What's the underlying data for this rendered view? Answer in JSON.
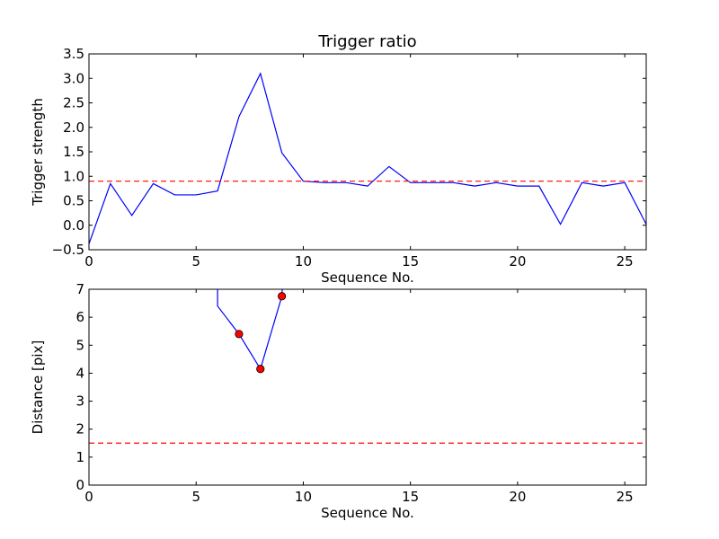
{
  "colors": {
    "line": "#0000ff",
    "threshold": "#ff0000",
    "marker": "#ff0000",
    "axes": "#000000"
  },
  "chart_data": [
    {
      "type": "line",
      "title": "Trigger ratio",
      "xlabel": "Sequence No.",
      "ylabel": "Trigger strength",
      "xlim": [
        0,
        26
      ],
      "ylim": [
        -0.5,
        3.5
      ],
      "xticks": [
        0,
        5,
        10,
        15,
        20,
        25
      ],
      "yticks": [
        -0.5,
        0.0,
        0.5,
        1.0,
        1.5,
        2.0,
        2.5,
        3.0,
        3.5
      ],
      "ytick_labels": [
        "−0.5",
        "0.0",
        "0.5",
        "1.0",
        "1.5",
        "2.0",
        "2.5",
        "3.0",
        "3.5"
      ],
      "series": [
        {
          "style": "solid",
          "x": [
            0,
            1,
            2,
            3,
            4,
            5,
            6,
            7,
            8,
            9,
            10,
            11,
            12,
            13,
            14,
            15,
            16,
            17,
            18,
            19,
            20,
            21,
            22,
            23,
            24,
            25,
            26
          ],
          "y": [
            -0.38,
            0.85,
            0.2,
            0.85,
            0.62,
            0.62,
            0.7,
            2.22,
            3.1,
            1.48,
            0.9,
            0.87,
            0.87,
            0.8,
            1.2,
            0.87,
            0.87,
            0.87,
            0.8,
            0.87,
            0.8,
            0.8,
            0.02,
            0.87,
            0.8,
            0.87,
            0.02
          ]
        }
      ],
      "threshold": 0.9,
      "grid": false
    },
    {
      "type": "line",
      "xlabel": "Sequence No.",
      "ylabel": "Distance [pix]",
      "xlim": [
        0,
        26
      ],
      "ylim": [
        0,
        7
      ],
      "xticks": [
        0,
        5,
        10,
        15,
        20,
        25
      ],
      "yticks": [
        0,
        1,
        2,
        3,
        4,
        5,
        6,
        7
      ],
      "ytick_labels": [
        "0",
        "1",
        "2",
        "3",
        "4",
        "5",
        "6",
        "7"
      ],
      "series": [
        {
          "x": [
            6,
            6,
            7,
            8,
            9,
            9.05
          ],
          "y": [
            7.5,
            6.4,
            5.4,
            4.15,
            6.75,
            7.5
          ]
        }
      ],
      "points": {
        "x": [
          7,
          8,
          9
        ],
        "y": [
          5.4,
          4.15,
          6.75
        ]
      },
      "threshold": 1.5,
      "grid": false
    }
  ]
}
